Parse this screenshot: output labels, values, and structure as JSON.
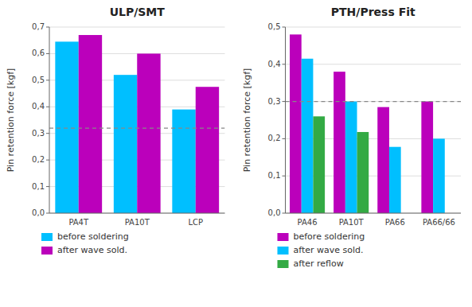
{
  "chart_data": [
    {
      "type": "bar",
      "title": "ULP/SMT",
      "y_label": "Pin retention force [kgf]",
      "categories": [
        "PA4T",
        "PA10T",
        "LCP"
      ],
      "series": [
        {
          "name": "before soldering",
          "color": "#00BFFF",
          "values": [
            0.645,
            0.52,
            0.39
          ]
        },
        {
          "name": "after wave sold.",
          "color": "#BB00BB",
          "values": [
            0.67,
            0.6,
            0.475
          ]
        }
      ],
      "ylim": [
        0,
        0.7
      ],
      "yticks": [
        {
          "value": 0.0,
          "label": "0,0"
        },
        {
          "value": 0.1,
          "label": "0,1"
        },
        {
          "value": 0.2,
          "label": "0,2"
        },
        {
          "value": 0.3,
          "label": "0,3"
        },
        {
          "value": 0.4,
          "label": "0,4"
        },
        {
          "value": 0.5,
          "label": "0,5"
        },
        {
          "value": 0.6,
          "label": "0,6"
        },
        {
          "value": 0.7,
          "label": "0,7"
        }
      ],
      "hline": 0.32,
      "grid": true,
      "legend": "bottom"
    },
    {
      "type": "bar",
      "title": "PTH/Press Fit",
      "y_label": "Pin retention force [kgf]",
      "categories": [
        "PA46",
        "PA10T",
        "PA66",
        "PA66/66"
      ],
      "series": [
        {
          "name": "before soldering",
          "color": "#BB00BB",
          "values": [
            0.48,
            0.38,
            0.285,
            0.3
          ]
        },
        {
          "name": "after wave sold.",
          "color": "#00BFFF",
          "values": [
            0.415,
            0.3,
            0.178,
            0.2
          ]
        },
        {
          "name": "after reflow",
          "color": "#33AA44",
          "values": [
            0.26,
            0.218,
            null,
            null
          ]
        }
      ],
      "ylim": [
        0,
        0.5
      ],
      "yticks": [
        {
          "value": 0.0,
          "label": "0,0"
        },
        {
          "value": 0.1,
          "label": "0,1"
        },
        {
          "value": 0.2,
          "label": "0,2"
        },
        {
          "value": 0.3,
          "label": "0,3"
        },
        {
          "value": 0.4,
          "label": "0,4"
        },
        {
          "value": 0.5,
          "label": "0,5"
        }
      ],
      "hline": 0.3,
      "grid": true,
      "legend": "bottom"
    }
  ]
}
